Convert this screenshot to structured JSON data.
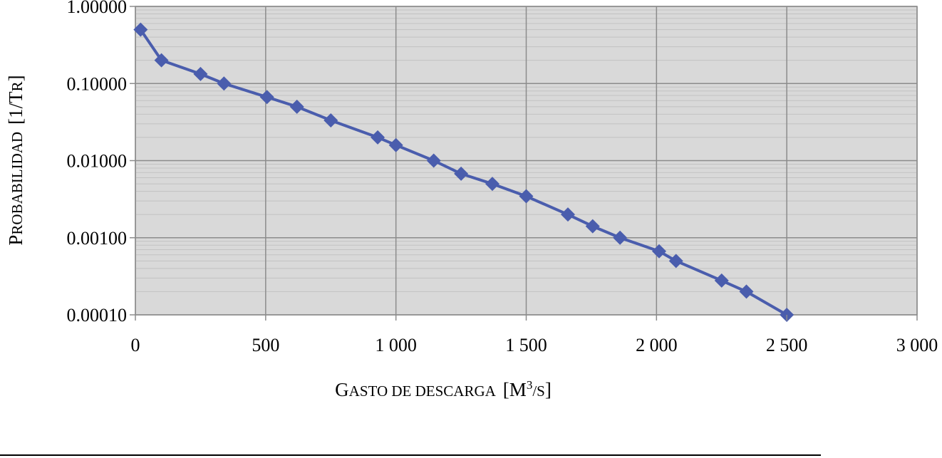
{
  "chart_data": {
    "type": "line",
    "yscale": "log",
    "xlim": [
      0,
      3000
    ],
    "ylim": [
      0.0001,
      1
    ],
    "grid": true,
    "legend": "none",
    "xticks": [
      0,
      500,
      1000,
      1500,
      2000,
      2500,
      3000
    ],
    "xtick_labels": [
      "0",
      "500",
      "1 000",
      "1 500",
      "2 000",
      "2 500",
      "3 000"
    ],
    "yticks": [
      1,
      0.1,
      0.01,
      0.001,
      0.0001
    ],
    "ytick_labels": [
      "1.00000",
      "0.10000",
      "0.01000",
      "0.00100",
      "0.00010"
    ],
    "xlabel": {
      "cap1": "G",
      "rest1": "ASTO DE DESCARGA",
      "bracket_open": "[",
      "unit_cap": "M",
      "unit_sup": "3",
      "unit_rest": "/S",
      "bracket_close": "]"
    },
    "ylabel": {
      "cap1": "P",
      "rest1": "ROBABILIDAD",
      "bracket_open": "[1/",
      "unit_cap": "T",
      "unit_rest": "R",
      "bracket_close": "]"
    },
    "series": [
      {
        "x": [
          20,
          100,
          250,
          340,
          505,
          620,
          750,
          930,
          1000,
          1145,
          1250,
          1370,
          1500,
          1660,
          1755,
          1860,
          2010,
          2075,
          2250,
          2345,
          2500
        ],
        "y": [
          0.5,
          0.2,
          0.133,
          0.1,
          0.0667,
          0.05,
          0.0333,
          0.02,
          0.0159,
          0.01,
          0.00676,
          0.005,
          0.00345,
          0.002,
          0.00141,
          0.001,
          0.000667,
          0.0005,
          0.000278,
          0.0002,
          0.0001
        ]
      }
    ],
    "colors": {
      "plot_bg": "#d9d9d9",
      "grid_major": "#8c8c8c",
      "grid_minor": "#c2c2c2",
      "series": "#4a5dad"
    }
  }
}
